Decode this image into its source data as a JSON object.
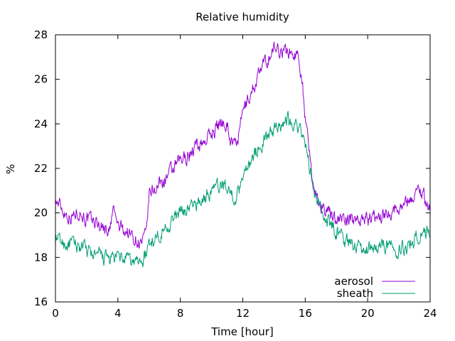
{
  "chart_data": {
    "type": "line",
    "title": "Relative humidity",
    "xlabel": "Time [hour]",
    "ylabel": "%",
    "xlim": [
      0,
      24
    ],
    "ylim": [
      16,
      28
    ],
    "xticks": [
      0,
      4,
      8,
      12,
      16,
      20,
      24
    ],
    "yticks": [
      16,
      18,
      20,
      22,
      24,
      26,
      28
    ],
    "grid": false,
    "legend_position": "bottom-right",
    "series": [
      {
        "name": "aerosol",
        "color": "#9400d3",
        "x": [
          0,
          0.5,
          1,
          1.5,
          2,
          2.5,
          3,
          3.5,
          3.7,
          4,
          4.5,
          5,
          5.5,
          5.8,
          6,
          6.5,
          7,
          7.5,
          8,
          8.5,
          9,
          9.5,
          10,
          10.5,
          11,
          11.2,
          11.5,
          11.8,
          12,
          12.5,
          13,
          13.5,
          14,
          14.5,
          15,
          15.5,
          15.8,
          16,
          16.3,
          16.6,
          17,
          17.5,
          18,
          18.5,
          19,
          19.5,
          20,
          20.5,
          21,
          21.5,
          22,
          22.5,
          23,
          23.3,
          23.6,
          24
        ],
        "y": [
          20.6,
          20.1,
          19.8,
          20.1,
          19.7,
          19.6,
          19.4,
          19.2,
          20.2,
          19.4,
          19.2,
          18.9,
          18.6,
          18.9,
          20.8,
          21.2,
          21.5,
          21.9,
          22.3,
          22.6,
          23.0,
          23.2,
          23.6,
          24.0,
          24.1,
          23.3,
          23.0,
          23.6,
          24.6,
          25.3,
          26.2,
          26.8,
          27.4,
          27.3,
          27.2,
          27.1,
          26.2,
          24.2,
          22.4,
          21.0,
          20.4,
          20.0,
          19.8,
          19.7,
          19.7,
          19.8,
          19.7,
          19.8,
          19.9,
          20.1,
          20.3,
          20.5,
          20.8,
          21.1,
          20.8,
          20.1
        ]
      },
      {
        "name": "sheath",
        "color": "#009e73",
        "x": [
          0,
          0.5,
          1,
          1.5,
          2,
          2.5,
          3,
          3.5,
          4,
          4.5,
          5,
          5.5,
          5.8,
          6,
          6.5,
          7,
          7.5,
          8,
          8.5,
          9,
          9.5,
          10,
          10.5,
          11,
          11.2,
          11.5,
          11.8,
          12,
          12.5,
          13,
          13.5,
          14,
          14.5,
          15,
          15.5,
          15.8,
          16,
          16.3,
          16.6,
          17,
          17.5,
          18,
          18.5,
          19,
          19.5,
          20,
          20.5,
          21,
          21.5,
          22,
          22.5,
          23,
          23.3,
          23.6,
          24
        ],
        "y": [
          18.9,
          18.6,
          18.6,
          18.5,
          18.3,
          18.1,
          18.0,
          17.9,
          18.0,
          17.9,
          17.8,
          17.8,
          18.1,
          18.6,
          19.0,
          19.3,
          19.7,
          20.0,
          20.2,
          20.4,
          20.6,
          21.0,
          21.2,
          21.3,
          20.8,
          20.7,
          21.0,
          21.8,
          22.4,
          22.9,
          23.3,
          23.8,
          24.1,
          24.2,
          24.0,
          23.5,
          23.0,
          22.0,
          20.8,
          20.1,
          19.6,
          19.2,
          18.8,
          18.6,
          18.5,
          18.4,
          18.5,
          18.6,
          18.5,
          18.4,
          18.5,
          18.8,
          19.0,
          19.2,
          19.1
        ]
      }
    ]
  }
}
